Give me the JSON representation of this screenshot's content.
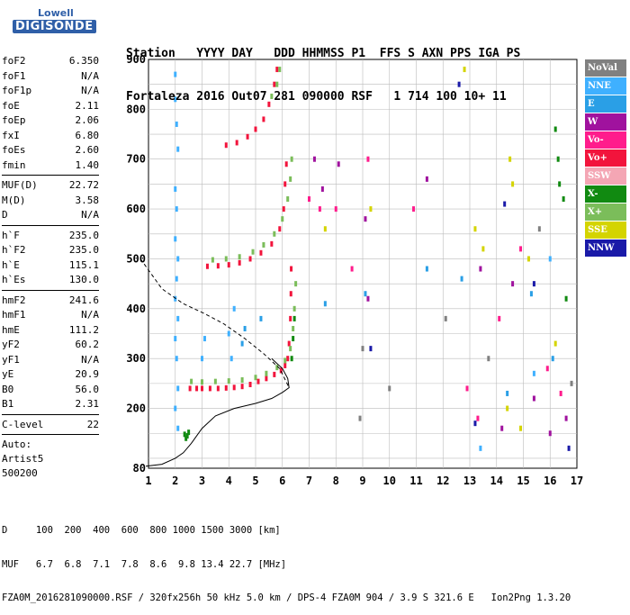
{
  "logo": {
    "line1": "Lowell",
    "line2": "DIGISONDE"
  },
  "header": {
    "line1": "Station   YYYY DAY   DDD HHMMSS P1  FFS S AXN PPS IGA PS",
    "line2": "Fortaleza 2016 Out07 281 090000 RSF   1 714 100 10+ 11"
  },
  "params_group1": [
    {
      "label": "foF2",
      "value": "6.350"
    },
    {
      "label": "foF1",
      "value": "N/A"
    },
    {
      "label": "foF1p",
      "value": "N/A"
    },
    {
      "label": "foE",
      "value": "2.11"
    },
    {
      "label": "foEp",
      "value": "2.06"
    },
    {
      "label": "fxI",
      "value": "6.80"
    },
    {
      "label": "foEs",
      "value": "2.60"
    },
    {
      "label": "fmin",
      "value": "1.40"
    }
  ],
  "params_group2": [
    {
      "label": "MUF(D)",
      "value": "22.72"
    },
    {
      "label": "M(D)",
      "value": "3.58"
    },
    {
      "label": "D",
      "value": "N/A"
    }
  ],
  "params_group3": [
    {
      "label": "h`F",
      "value": "235.0"
    },
    {
      "label": "h`F2",
      "value": "235.0"
    },
    {
      "label": "h`E",
      "value": "115.1"
    },
    {
      "label": "h`Es",
      "value": "130.0"
    }
  ],
  "params_group4": [
    {
      "label": "hmF2",
      "value": "241.6"
    },
    {
      "label": "hmF1",
      "value": "N/A"
    },
    {
      "label": "hmE",
      "value": "111.2"
    },
    {
      "label": "yF2",
      "value": "60.2"
    },
    {
      "label": "yF1",
      "value": "N/A"
    },
    {
      "label": "yE",
      "value": "20.9"
    },
    {
      "label": "B0",
      "value": "56.0"
    },
    {
      "label": "B1",
      "value": "2.31"
    }
  ],
  "params_group5": [
    {
      "label": "C-level",
      "value": "22"
    }
  ],
  "autoscale": {
    "line1": "Auto:",
    "line2": "Artist5",
    "line3": "500200"
  },
  "legend": [
    {
      "label": "NoVal",
      "color": "#808080"
    },
    {
      "label": "NNE",
      "color": "#3fb0ff"
    },
    {
      "label": "E",
      "color": "#2a9fe6"
    },
    {
      "label": "W",
      "color": "#a0129e"
    },
    {
      "label": "Vo-",
      "color": "#ff1c8c"
    },
    {
      "label": "Vo+",
      "color": "#f2143c"
    },
    {
      "label": "SSW",
      "color": "#f4a6b4"
    },
    {
      "label": "X-",
      "color": "#118a11"
    },
    {
      "label": "X+",
      "color": "#7bbd5a"
    },
    {
      "label": "SSE",
      "color": "#d4d400"
    },
    {
      "label": "NNW",
      "color": "#1a1aa8"
    }
  ],
  "footer": {
    "line1": "D     100  200  400  600  800 1000 1500 3000 [km]",
    "line2": "MUF   6.7  6.8  7.1  7.8  8.6  9.8 13.4 22.7 [MHz]",
    "line3": "FZA0M_2016281090000.RSF / 320fx256h 50 kHz 5.0 km / DPS-4 FZA0M 904 / 3.9 S 321.6 E   Ion2Png 1.3.20"
  },
  "chart_data": {
    "type": "scatter",
    "xlim": [
      1,
      17
    ],
    "ylim": [
      80,
      900
    ],
    "x_ticks": [
      1,
      2,
      3,
      4,
      5,
      6,
      7,
      8,
      9,
      10,
      11,
      12,
      13,
      14,
      15,
      16,
      17
    ],
    "y_ticks": [
      80,
      200,
      300,
      400,
      500,
      600,
      700,
      800,
      900
    ],
    "grid": true,
    "series": [
      {
        "color": "#f2143c",
        "points": [
          [
            2.55,
            240
          ],
          [
            2.8,
            240
          ],
          [
            3.0,
            240
          ],
          [
            3.3,
            240
          ],
          [
            3.6,
            240
          ],
          [
            3.9,
            241
          ],
          [
            4.2,
            242
          ],
          [
            4.5,
            244
          ],
          [
            4.8,
            248
          ],
          [
            5.1,
            254
          ],
          [
            5.4,
            260
          ],
          [
            5.7,
            268
          ],
          [
            5.95,
            276
          ],
          [
            6.1,
            286
          ],
          [
            6.2,
            300
          ],
          [
            6.25,
            330
          ],
          [
            6.3,
            380
          ],
          [
            6.32,
            430
          ],
          [
            6.33,
            480
          ],
          [
            3.2,
            485
          ],
          [
            3.6,
            486
          ],
          [
            4.0,
            488
          ],
          [
            4.4,
            492
          ],
          [
            4.8,
            500
          ],
          [
            5.2,
            512
          ],
          [
            5.6,
            530
          ],
          [
            5.9,
            560
          ],
          [
            6.05,
            600
          ],
          [
            6.1,
            650
          ],
          [
            6.15,
            690
          ],
          [
            3.9,
            728
          ],
          [
            4.3,
            733
          ],
          [
            4.7,
            745
          ],
          [
            5.0,
            760
          ],
          [
            5.3,
            780
          ],
          [
            5.5,
            810
          ],
          [
            5.7,
            850
          ],
          [
            5.8,
            880
          ]
        ]
      },
      {
        "color": "#7bbd5a",
        "points": [
          [
            2.6,
            254
          ],
          [
            3.0,
            253
          ],
          [
            3.5,
            254
          ],
          [
            4.0,
            255
          ],
          [
            4.5,
            257
          ],
          [
            5.0,
            262
          ],
          [
            5.4,
            270
          ],
          [
            5.8,
            282
          ],
          [
            6.1,
            296
          ],
          [
            6.3,
            320
          ],
          [
            6.4,
            360
          ],
          [
            6.45,
            400
          ],
          [
            6.5,
            450
          ],
          [
            3.4,
            498
          ],
          [
            3.9,
            500
          ],
          [
            4.4,
            504
          ],
          [
            4.9,
            514
          ],
          [
            5.3,
            528
          ],
          [
            5.7,
            550
          ],
          [
            6.0,
            580
          ],
          [
            6.2,
            620
          ],
          [
            6.3,
            660
          ],
          [
            6.35,
            700
          ],
          [
            5.6,
            826
          ],
          [
            5.8,
            850
          ],
          [
            5.9,
            880
          ]
        ]
      },
      {
        "color": "#118a11",
        "points": [
          [
            2.35,
            148
          ],
          [
            2.45,
            145
          ],
          [
            2.5,
            152
          ],
          [
            2.4,
            140
          ],
          [
            6.35,
            300
          ],
          [
            6.4,
            340
          ],
          [
            6.45,
            380
          ],
          [
            16.2,
            760
          ],
          [
            16.3,
            700
          ],
          [
            16.35,
            650
          ],
          [
            16.5,
            620
          ],
          [
            16.6,
            420
          ]
        ]
      },
      {
        "color": "#3fb0ff",
        "points": [
          [
            2.0,
            870
          ],
          [
            2.0,
            820
          ],
          [
            2.05,
            770
          ],
          [
            2.1,
            720
          ],
          [
            2.0,
            640
          ],
          [
            2.05,
            600
          ],
          [
            2.0,
            540
          ],
          [
            2.1,
            500
          ],
          [
            2.05,
            460
          ],
          [
            2.0,
            420
          ],
          [
            2.1,
            380
          ],
          [
            2.0,
            340
          ],
          [
            2.05,
            300
          ],
          [
            2.1,
            240
          ],
          [
            2.0,
            200
          ],
          [
            2.1,
            160
          ],
          [
            3.0,
            300
          ],
          [
            3.1,
            340
          ],
          [
            4.0,
            350
          ],
          [
            4.1,
            300
          ],
          [
            4.2,
            400
          ],
          [
            13.4,
            120
          ],
          [
            15.4,
            270
          ],
          [
            16.0,
            500
          ]
        ]
      },
      {
        "color": "#2a9fe6",
        "points": [
          [
            4.5,
            330
          ],
          [
            4.6,
            360
          ],
          [
            5.2,
            380
          ],
          [
            7.6,
            410
          ],
          [
            9.1,
            430
          ],
          [
            11.4,
            480
          ],
          [
            12.7,
            460
          ],
          [
            14.4,
            230
          ],
          [
            15.3,
            430
          ],
          [
            16.1,
            300
          ]
        ]
      },
      {
        "color": "#a0129e",
        "points": [
          [
            7.2,
            700
          ],
          [
            7.5,
            640
          ],
          [
            8.1,
            690
          ],
          [
            9.1,
            580
          ],
          [
            9.2,
            420
          ],
          [
            11.4,
            660
          ],
          [
            13.4,
            480
          ],
          [
            14.2,
            160
          ],
          [
            14.6,
            450
          ],
          [
            15.4,
            220
          ],
          [
            16.0,
            150
          ],
          [
            16.6,
            180
          ]
        ]
      },
      {
        "color": "#ff1c8c",
        "points": [
          [
            7.0,
            620
          ],
          [
            7.4,
            600
          ],
          [
            8.0,
            600
          ],
          [
            8.6,
            480
          ],
          [
            9.2,
            700
          ],
          [
            10.9,
            600
          ],
          [
            12.9,
            240
          ],
          [
            13.3,
            180
          ],
          [
            14.1,
            380
          ],
          [
            14.9,
            520
          ],
          [
            15.9,
            280
          ],
          [
            16.4,
            230
          ]
        ]
      },
      {
        "color": "#d4d400",
        "points": [
          [
            7.6,
            560
          ],
          [
            9.3,
            600
          ],
          [
            12.8,
            880
          ],
          [
            13.2,
            560
          ],
          [
            13.5,
            520
          ],
          [
            14.5,
            700
          ],
          [
            14.6,
            650
          ],
          [
            14.4,
            200
          ],
          [
            14.9,
            160
          ],
          [
            15.2,
            500
          ],
          [
            16.2,
            330
          ]
        ]
      },
      {
        "color": "#808080",
        "points": [
          [
            8.9,
            180
          ],
          [
            9.0,
            320
          ],
          [
            10.0,
            240
          ],
          [
            12.1,
            380
          ],
          [
            13.7,
            300
          ],
          [
            15.6,
            560
          ],
          [
            16.8,
            250
          ]
        ]
      },
      {
        "color": "#1a1aa8",
        "points": [
          [
            9.3,
            320
          ],
          [
            12.6,
            850
          ],
          [
            13.2,
            170
          ],
          [
            14.3,
            610
          ],
          [
            15.4,
            450
          ],
          [
            16.7,
            120
          ]
        ]
      }
    ],
    "profile_solid": [
      [
        0.9,
        84
      ],
      [
        1.5,
        88
      ],
      [
        2.0,
        100
      ],
      [
        2.3,
        111
      ],
      [
        2.6,
        130
      ],
      [
        3.0,
        160
      ],
      [
        3.5,
        185
      ],
      [
        4.2,
        200
      ],
      [
        5.0,
        210
      ],
      [
        5.6,
        220
      ],
      [
        6.0,
        232
      ],
      [
        6.25,
        241.6
      ],
      [
        6.2,
        260
      ],
      [
        6.0,
        280
      ],
      [
        5.6,
        300
      ]
    ],
    "profile_dashed": [
      [
        0.7,
        500
      ],
      [
        1.5,
        440
      ],
      [
        2.3,
        410
      ],
      [
        3.1,
        390
      ],
      [
        3.8,
        370
      ],
      [
        4.6,
        340
      ],
      [
        5.3,
        310
      ],
      [
        5.9,
        280
      ],
      [
        6.25,
        241.6
      ]
    ]
  }
}
